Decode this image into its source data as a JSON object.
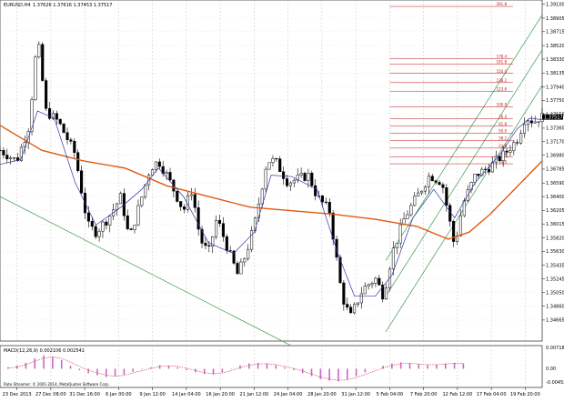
{
  "header": {
    "symbol": "EURUSD,H4",
    "ohlc": "1.37626 1.37616 1.37453 1.37517"
  },
  "colors": {
    "candles": "#000000",
    "grid": "#b8b8b8",
    "ema_fast": "#3333aa",
    "ma_slow": "#e05a10",
    "fib": "#c01010",
    "channel": "#3a9a4a",
    "macd_hist": "#cc66cc",
    "macd_signal": "#cc3333"
  },
  "chart_data": {
    "type": "candlestick",
    "price_axis": {
      "ylim": [
        1.3437,
        1.3916
      ],
      "tick_labels": [
        "1.39100",
        "1.38905",
        "1.38715",
        "1.38520",
        "1.38330",
        "1.38135",
        "1.37940",
        "1.37750",
        "1.37555",
        "1.37360",
        "1.37170",
        "1.36980",
        "1.36785",
        "1.36590",
        "1.36400",
        "1.36205",
        "1.36015",
        "1.35820",
        "1.35630",
        "1.35435",
        "1.35245",
        "1.35050",
        "1.34860",
        "1.34665"
      ],
      "tick_values": [
        1.391,
        1.38905,
        1.38715,
        1.3852,
        1.3833,
        1.38135,
        1.3794,
        1.3775,
        1.37555,
        1.3736,
        1.3717,
        1.3698,
        1.36785,
        1.3659,
        1.364,
        1.36205,
        1.36015,
        1.3582,
        1.3563,
        1.35435,
        1.35245,
        1.3505,
        1.3486,
        1.34665
      ],
      "current_price_label": "1.37517",
      "current_price": 1.37517
    },
    "time_axis": {
      "labels": [
        "23 Dec 2013",
        "27 Dec 08:00",
        "31 Dec 16:00",
        "6 Jan 00:00",
        "9 Jan 12:00",
        "14 Jan 04:00",
        "16 Jan 20:00",
        "21 Jan 12:00",
        "24 Jan 04:00",
        "28 Jan 20:00",
        "31 Jan 12:00",
        "5 Feb 04:00",
        "7 Feb 20:00",
        "12 Feb 12:00",
        "17 Feb 04:00",
        "19 Feb 20:00"
      ]
    },
    "candle_count": 154,
    "price_path": [
      [
        0,
        1.3705
      ],
      [
        8,
        1.369
      ],
      [
        14,
        1.374
      ],
      [
        18,
        1.3865
      ],
      [
        22,
        1.376
      ],
      [
        28,
        1.3745
      ],
      [
        36,
        1.37
      ],
      [
        42,
        1.36
      ],
      [
        46,
        1.359
      ],
      [
        52,
        1.361
      ],
      [
        58,
        1.364
      ],
      [
        62,
        1.358
      ],
      [
        68,
        1.364
      ],
      [
        72,
        1.368
      ],
      [
        76,
        1.369
      ],
      [
        80,
        1.367
      ],
      [
        88,
        1.362
      ],
      [
        92,
        1.365
      ],
      [
        96,
        1.358
      ],
      [
        100,
        1.356
      ],
      [
        104,
        1.361
      ],
      [
        110,
        1.356
      ],
      [
        114,
        1.353
      ],
      [
        118,
        1.356
      ],
      [
        122,
        1.36
      ],
      [
        128,
        1.369
      ],
      [
        132,
        1.369
      ],
      [
        138,
        1.366
      ],
      [
        143,
        1.3665
      ],
      [
        148,
        1.367
      ],
      [
        152,
        1.364
      ],
      [
        158,
        1.362
      ],
      [
        164,
        1.35
      ],
      [
        168,
        1.347
      ],
      [
        174,
        1.351
      ],
      [
        180,
        1.3525
      ],
      [
        184,
        1.35
      ],
      [
        188,
        1.356
      ],
      [
        194,
        1.361
      ],
      [
        200,
        1.364
      ],
      [
        206,
        1.367
      ],
      [
        212,
        1.366
      ],
      [
        218,
        1.357
      ],
      [
        222,
        1.363
      ],
      [
        228,
        1.367
      ],
      [
        234,
        1.368
      ],
      [
        242,
        1.37
      ],
      [
        248,
        1.372
      ],
      [
        252,
        1.3752
      ],
      [
        256,
        1.3745
      ],
      [
        259,
        1.3752
      ]
    ],
    "ma_slow": [
      [
        0,
        1.374
      ],
      [
        20,
        1.3705
      ],
      [
        40,
        1.369
      ],
      [
        60,
        1.368
      ],
      [
        80,
        1.3655
      ],
      [
        100,
        1.364
      ],
      [
        120,
        1.3625
      ],
      [
        140,
        1.362
      ],
      [
        160,
        1.3615
      ],
      [
        180,
        1.3608
      ],
      [
        200,
        1.3598
      ],
      [
        215,
        1.358
      ],
      [
        225,
        1.359
      ],
      [
        235,
        1.3615
      ],
      [
        245,
        1.3645
      ],
      [
        255,
        1.3675
      ],
      [
        260,
        1.369
      ]
    ],
    "ema_fast": [
      [
        0,
        1.3685
      ],
      [
        10,
        1.3692
      ],
      [
        18,
        1.376
      ],
      [
        26,
        1.375
      ],
      [
        36,
        1.366
      ],
      [
        46,
        1.36
      ],
      [
        58,
        1.3625
      ],
      [
        68,
        1.365
      ],
      [
        76,
        1.368
      ],
      [
        88,
        1.364
      ],
      [
        100,
        1.3575
      ],
      [
        112,
        1.356
      ],
      [
        122,
        1.359
      ],
      [
        130,
        1.367
      ],
      [
        140,
        1.3668
      ],
      [
        152,
        1.365
      ],
      [
        162,
        1.356
      ],
      [
        170,
        1.35
      ],
      [
        180,
        1.35
      ],
      [
        188,
        1.353
      ],
      [
        198,
        1.361
      ],
      [
        208,
        1.365
      ],
      [
        218,
        1.361
      ],
      [
        228,
        1.366
      ],
      [
        240,
        1.37
      ],
      [
        248,
        1.3735
      ],
      [
        254,
        1.375
      ],
      [
        260,
        1.3748
      ]
    ],
    "fibonacci": [
      {
        "label": "261.8",
        "value": 1.3907
      },
      {
        "label": "178.4",
        "value": 1.3834
      },
      {
        "label": "161.8",
        "value": 1.3826
      },
      {
        "label": "150.0",
        "value": 1.3813
      },
      {
        "label": "138.2",
        "value": 1.38
      },
      {
        "label": "123.6",
        "value": 1.3788
      },
      {
        "label": "100.0",
        "value": 1.3766
      },
      {
        "label": "76.4",
        "value": 1.3749
      },
      {
        "label": "61.8",
        "value": 1.3739
      },
      {
        "label": "50.0",
        "value": 1.3729
      },
      {
        "label": "38.2",
        "value": 1.3719
      },
      {
        "label": "23.6",
        "value": 1.3708
      },
      {
        "label": "0.0",
        "value": 1.3686
      },
      {
        "label": "8.8",
        "value": 1.3696
      }
    ],
    "channel_lines": [
      {
        "name": "upper",
        "points": [
          [
            185,
            1.355
          ],
          [
            260,
            1.3895
          ]
        ]
      },
      {
        "name": "middle",
        "points": [
          [
            185,
            1.35
          ],
          [
            260,
            1.3846
          ]
        ]
      },
      {
        "name": "lower",
        "points": [
          [
            185,
            1.345
          ],
          [
            260,
            1.3796
          ]
        ]
      },
      {
        "name": "down_trend",
        "points": [
          [
            0,
            1.364
          ],
          [
            140,
            1.343
          ]
        ]
      }
    ],
    "macd": {
      "label": "MACD(12,26,9) 0.002106 0.002541",
      "ylim": [
        -0.006,
        0.0075
      ],
      "tick_labels": [
        "0.007180",
        "0.00",
        "-0.00452"
      ],
      "tick_values": [
        0.00718,
        0.0,
        -0.00452
      ],
      "histogram": [
        0.0005,
        0.001,
        0.002,
        0.0035,
        0.0045,
        0.004,
        0.003,
        0.001,
        -0.0005,
        -0.0015,
        -0.0022,
        -0.0028,
        -0.0026,
        -0.002,
        -0.001,
        0.0,
        0.0005,
        0.0012,
        0.001,
        0.0005,
        -0.0005,
        -0.0012,
        -0.0018,
        -0.002,
        -0.0012,
        0.0,
        0.0012,
        0.0018,
        0.002,
        0.0018,
        0.0012,
        0.0005,
        -0.0005,
        -0.0015,
        -0.0025,
        -0.0035,
        -0.004,
        -0.0042,
        -0.0036,
        -0.0025,
        -0.0012,
        0.0,
        0.001,
        0.0018,
        0.0022,
        0.002,
        0.0016,
        0.0012,
        0.0014,
        0.0018,
        0.002,
        0.0018
      ],
      "signal": [
        0.0002,
        0.0006,
        0.0014,
        0.0026,
        0.0036,
        0.004,
        0.0035,
        0.0022,
        0.0008,
        -0.0005,
        -0.0014,
        -0.0022,
        -0.0025,
        -0.0022,
        -0.0014,
        -0.0006,
        0.0001,
        0.0008,
        0.001,
        0.0008,
        0.0002,
        -0.0006,
        -0.0013,
        -0.0017,
        -0.0014,
        -0.0006,
        0.0004,
        0.0012,
        0.0016,
        0.0017,
        0.0014,
        0.0008,
        0.0001,
        -0.0008,
        -0.0018,
        -0.0028,
        -0.0035,
        -0.0039,
        -0.0037,
        -0.003,
        -0.0019,
        -0.0008,
        0.0003,
        0.0011,
        0.0017,
        0.0018,
        0.0016,
        0.0014,
        0.0014,
        0.0016,
        0.0018,
        0.0018
      ]
    },
    "bottom_strip_text": "Rate Streamer: © 2001-2014, MetaQuotes Software Corp.",
    "grid": true
  }
}
